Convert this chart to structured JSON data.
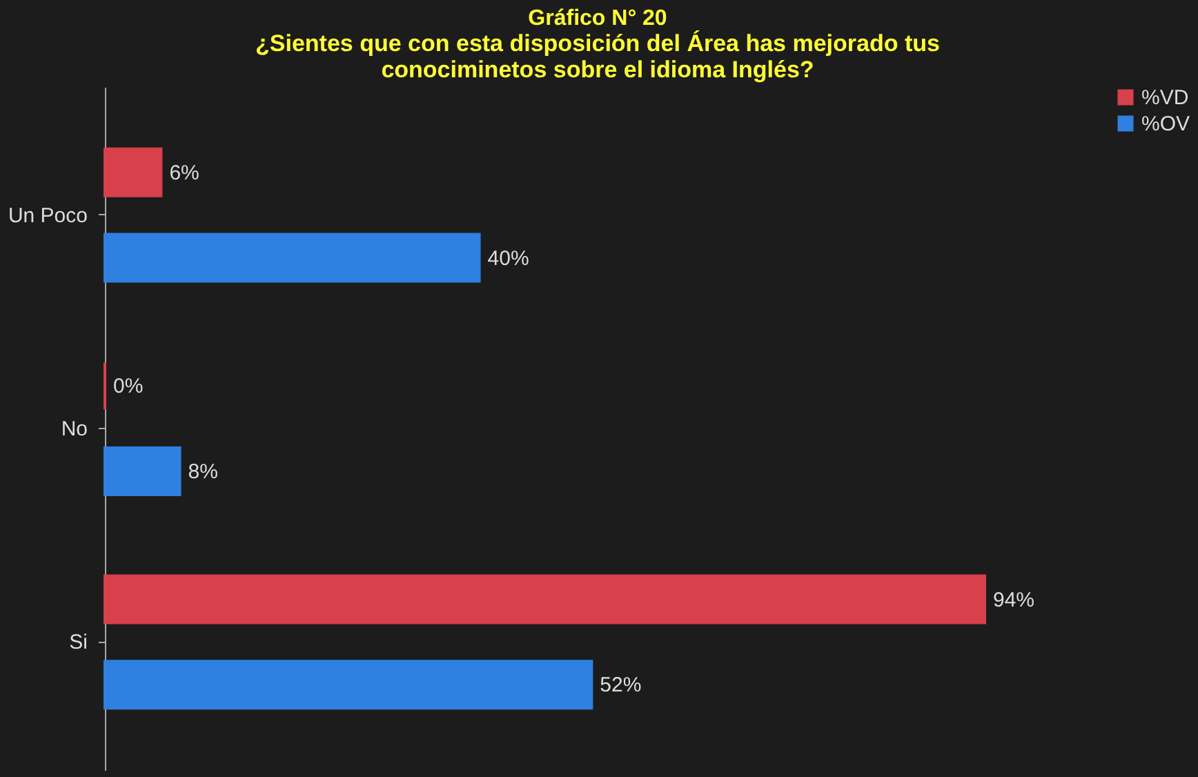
{
  "chart_data": {
    "type": "bar",
    "orientation": "horizontal",
    "title": "Gráfico N° 20",
    "subtitle": "¿Sientes que con esta disposición del Área has mejorado tus conociminetos sobre el idioma Inglés?",
    "categories": [
      "Un Poco",
      "No",
      "Si"
    ],
    "series": [
      {
        "name": "%VD",
        "color": "#d8404c",
        "values": [
          6,
          0,
          94
        ],
        "value_labels": [
          "6%",
          "0%",
          "94%"
        ]
      },
      {
        "name": "%OV",
        "color": "#2f80e0",
        "values": [
          40,
          8,
          52
        ],
        "value_labels": [
          "40%",
          "8%",
          "52%"
        ]
      }
    ],
    "tick_labels": "y",
    "legend": "right",
    "grid": false
  }
}
